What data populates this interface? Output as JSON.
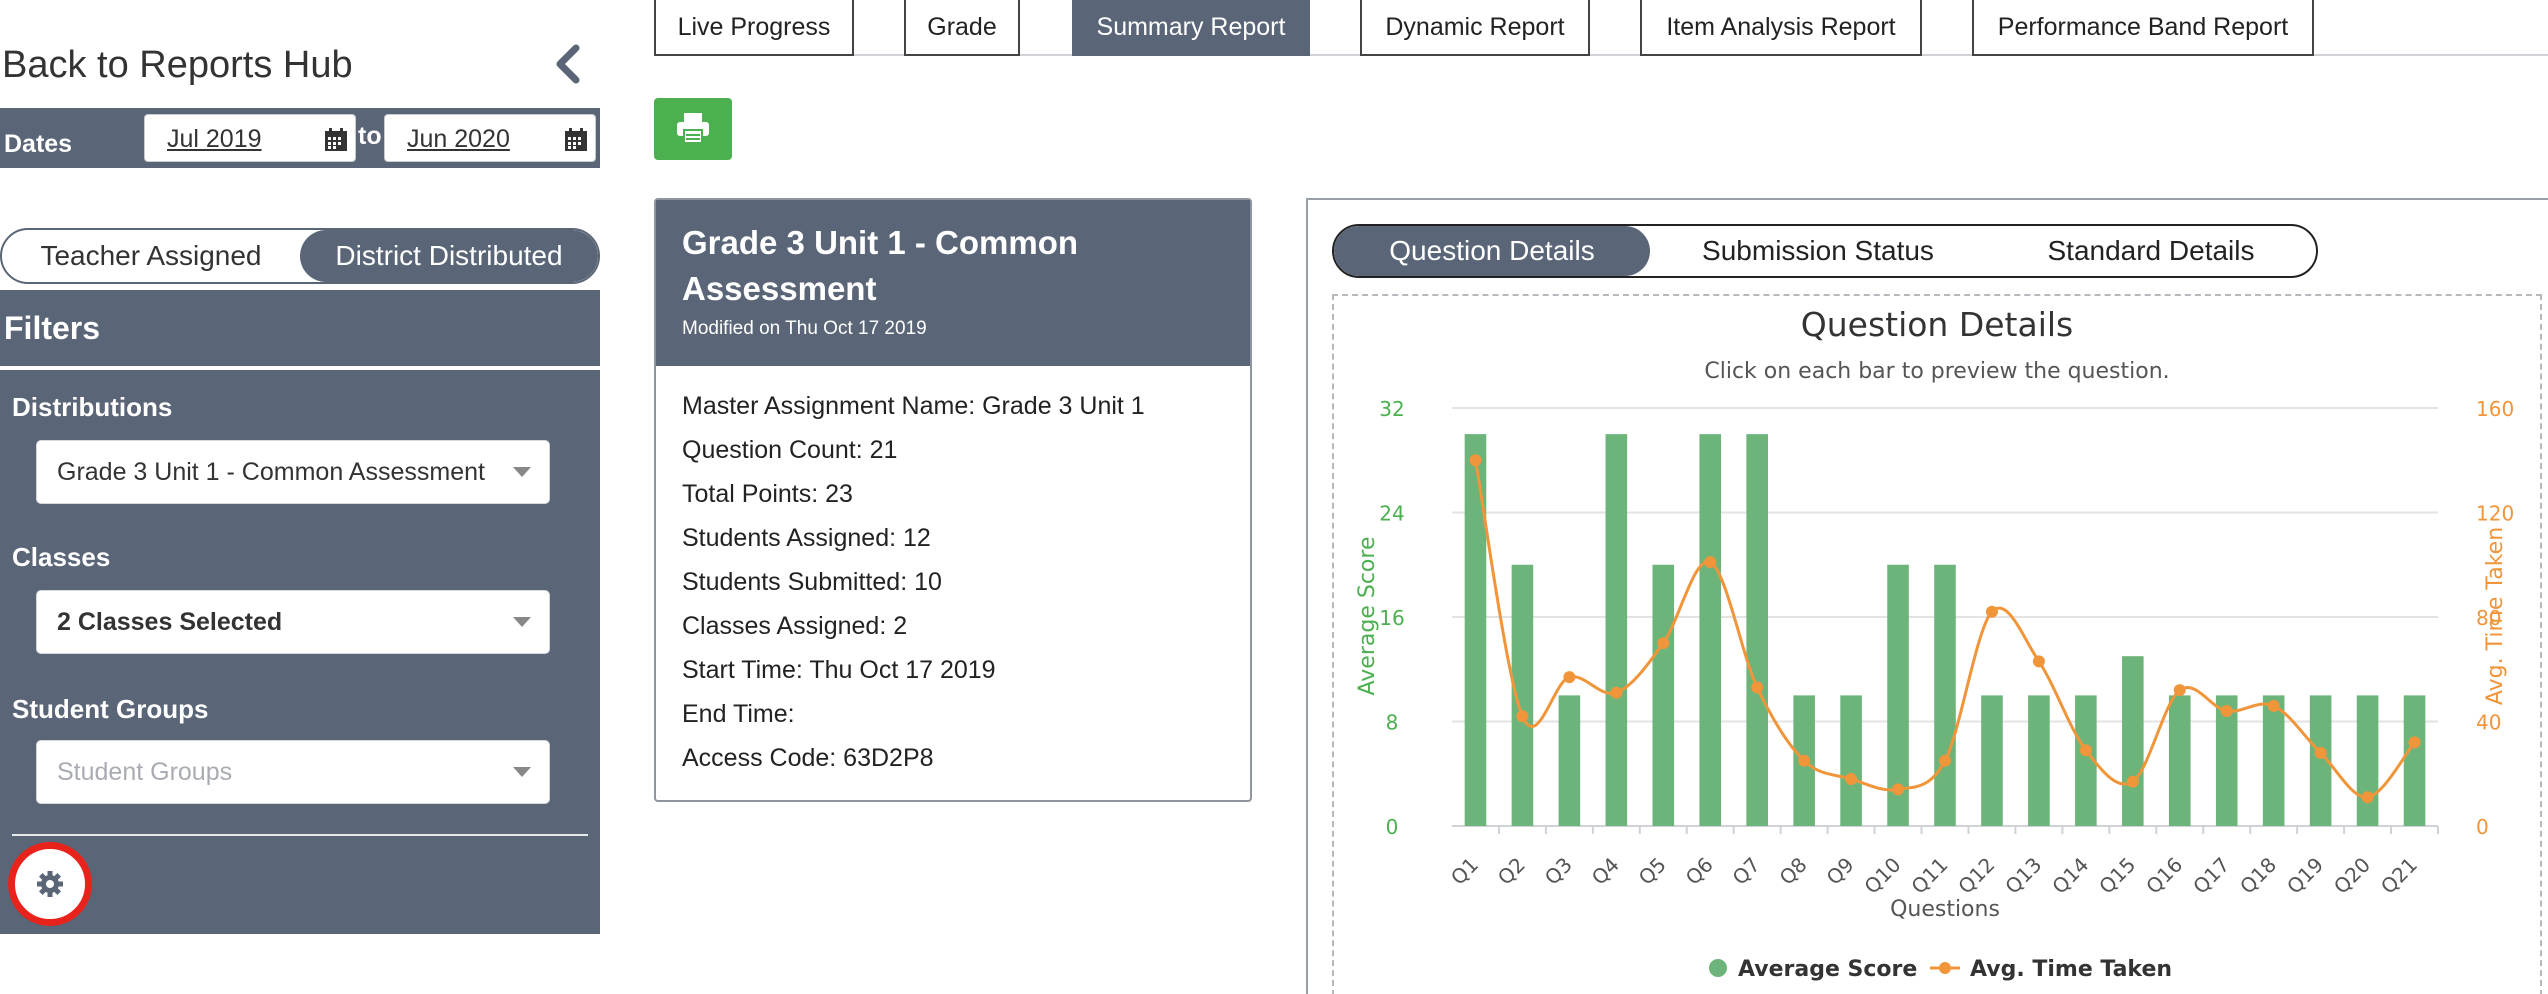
{
  "sidebar": {
    "back_label": "Back to Reports Hub",
    "dates_label": "Dates",
    "date_from": "Jul 2019",
    "to_label": "to",
    "date_to": "Jun 2020",
    "toggle": [
      "Teacher Assigned",
      "District Distributed"
    ],
    "toggle_active": "District Distributed",
    "filters_title": "Filters",
    "distributions_label": "Distributions",
    "distributions_value": "Grade 3 Unit 1 - Common Assessment",
    "classes_label": "Classes",
    "classes_value": "2 Classes Selected",
    "student_groups_label": "Student Groups",
    "student_groups_placeholder": "Student Groups"
  },
  "tabs": [
    "Live Progress",
    "Grade",
    "Summary Report",
    "Dynamic Report",
    "Item Analysis Report",
    "Performance Band Report"
  ],
  "active_tab": "Summary Report",
  "card": {
    "title": "Grade 3 Unit 1 - Common Assessment",
    "modified": "Modified on Thu Oct 17 2019",
    "lines": [
      "Master Assignment Name: Grade 3 Unit 1",
      "Question Count: 21",
      "Total Points: 23",
      "Students Assigned: 12",
      "Students Submitted: 10",
      "Classes Assigned: 2",
      "Start Time: Thu Oct 17 2019",
      "End Time:",
      "Access Code: 63D2P8"
    ]
  },
  "detail_tabs": [
    "Question Details",
    "Submission Status",
    "Standard Details"
  ],
  "detail_active": "Question Details",
  "colors": {
    "panel": "#5a6677",
    "bar": "#6db47a",
    "line": "#f0953a",
    "left_axis": "#4caf50",
    "right_axis": "#f0953a",
    "print": "#4caf50",
    "highlight": "#e8231b"
  },
  "chart_data": {
    "type": "bar",
    "title": "Question Details",
    "subtitle": "Click on each bar to preview the question.",
    "xlabel": "Questions",
    "ylabel": "Average Score",
    "y2label": "Avg. Time Taken",
    "categories": [
      "Q1",
      "Q2",
      "Q3",
      "Q4",
      "Q5",
      "Q6",
      "Q7",
      "Q8",
      "Q9",
      "Q10",
      "Q11",
      "Q12",
      "Q13",
      "Q14",
      "Q15",
      "Q16",
      "Q17",
      "Q18",
      "Q19",
      "Q20",
      "Q21"
    ],
    "ylim": [
      0,
      32
    ],
    "y_ticks": [
      0,
      8,
      16,
      24,
      32
    ],
    "y2lim": [
      0,
      160
    ],
    "y2_ticks": [
      0,
      40,
      80,
      120,
      160
    ],
    "series": [
      {
        "name": "Average Score",
        "kind": "bar",
        "axis": "left",
        "values": [
          30,
          20,
          10,
          30,
          20,
          30,
          30,
          10,
          10,
          20,
          20,
          10,
          10,
          10,
          13,
          10,
          10,
          10,
          10,
          10,
          10
        ]
      },
      {
        "name": "Avg. Time Taken",
        "kind": "line",
        "axis": "right",
        "values": [
          140,
          42,
          57,
          51,
          70,
          101,
          53,
          25,
          18,
          14,
          25,
          82,
          63,
          29,
          17,
          52,
          44,
          46,
          28,
          11,
          32
        ]
      }
    ],
    "legend": "bottom",
    "grid": true
  }
}
